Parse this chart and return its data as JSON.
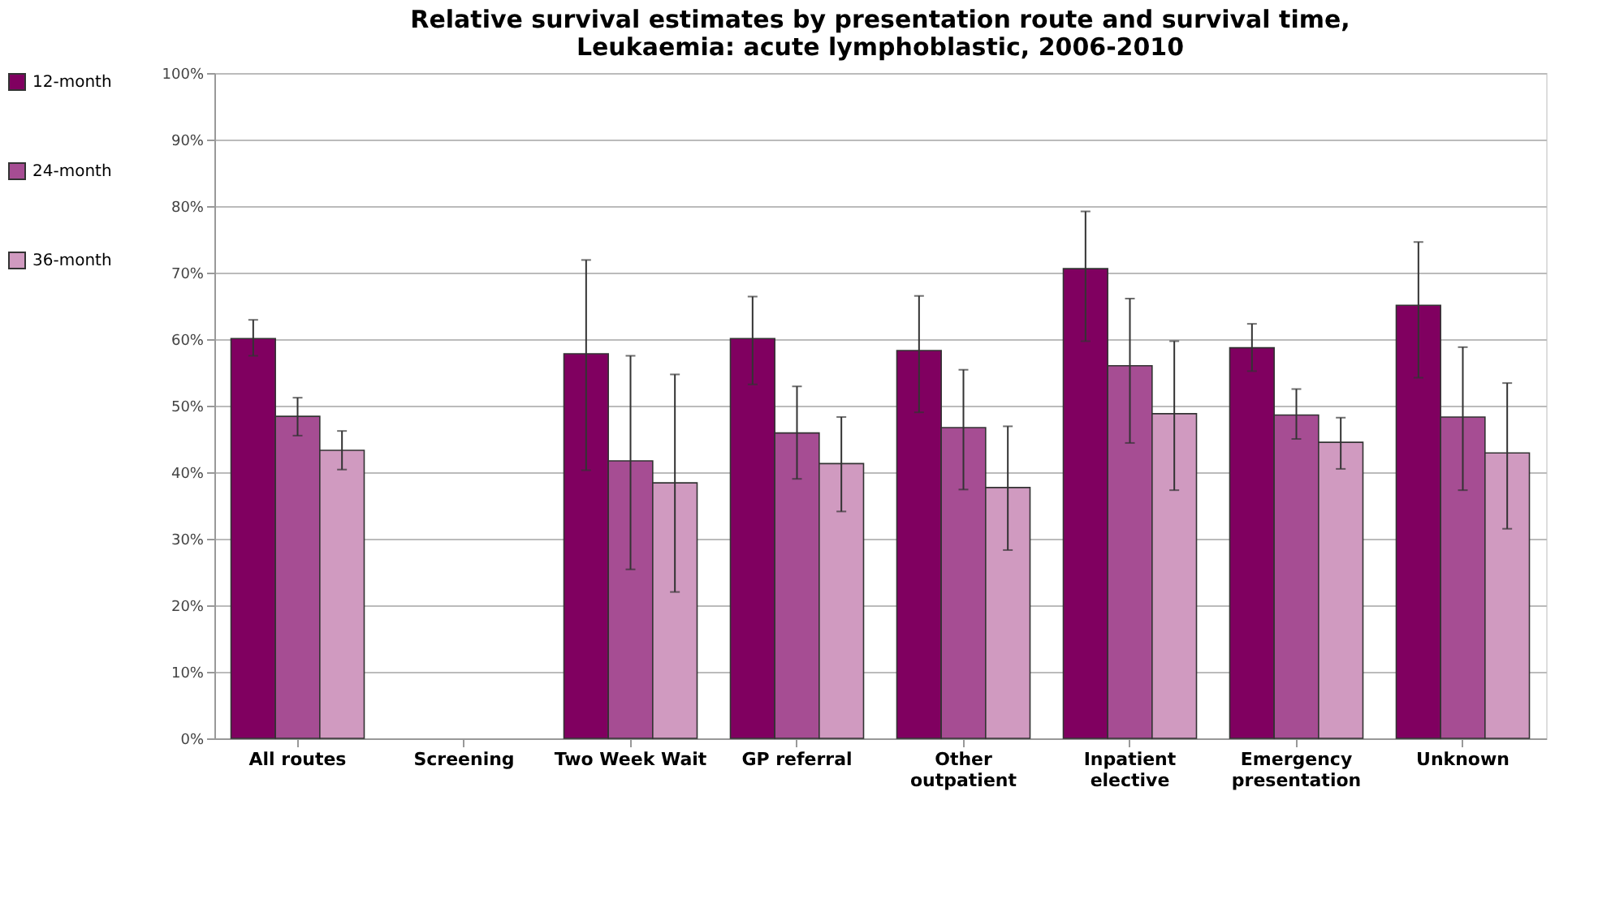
{
  "chart_data": {
    "type": "bar",
    "title": "Relative survival estimates by presentation route and survival time, Leukaemia: acute lymphoblastic, 2006-2010",
    "categories": [
      "All routes",
      "Screening",
      "Two Week Wait",
      "GP referral",
      "Other outpatient",
      "Inpatient elective",
      "Emergency presentation",
      "Unknown"
    ],
    "series": [
      {
        "name": "12-month",
        "color": "#800060",
        "values": [
          60.1,
          null,
          57.8,
          60.1,
          58.3,
          70.6,
          58.7,
          65.1
        ],
        "errors": [
          [
            57.5,
            62.9
          ],
          null,
          [
            40.3,
            71.9
          ],
          [
            53.2,
            66.4
          ],
          [
            49.0,
            66.5
          ],
          [
            59.7,
            79.2
          ],
          [
            55.2,
            62.3
          ],
          [
            54.2,
            74.6
          ]
        ]
      },
      {
        "name": "24-month",
        "color": "#a64d93",
        "values": [
          48.4,
          null,
          41.7,
          45.9,
          46.7,
          56.0,
          48.6,
          48.3
        ],
        "errors": [
          [
            45.5,
            51.2
          ],
          null,
          [
            25.4,
            57.5
          ],
          [
            39.0,
            52.9
          ],
          [
            37.4,
            55.4
          ],
          [
            44.4,
            66.1
          ],
          [
            45.0,
            52.5
          ],
          [
            37.3,
            58.8
          ]
        ]
      },
      {
        "name": "36-month",
        "color": "#d09ac0",
        "values": [
          43.3,
          null,
          38.4,
          41.3,
          37.7,
          48.8,
          44.5,
          42.9
        ],
        "errors": [
          [
            40.4,
            46.2
          ],
          null,
          [
            22.0,
            54.7
          ],
          [
            34.1,
            48.3
          ],
          [
            28.3,
            46.9
          ],
          [
            37.3,
            59.7
          ],
          [
            40.5,
            48.2
          ],
          [
            31.5,
            53.4
          ]
        ]
      }
    ],
    "ylim": [
      0,
      100
    ],
    "yticks": [
      {
        "value": 0,
        "label": "0%"
      },
      {
        "value": 10,
        "label": "10%"
      },
      {
        "value": 20,
        "label": "20%"
      },
      {
        "value": 30,
        "label": "30%"
      },
      {
        "value": 40,
        "label": "40%"
      },
      {
        "value": 50,
        "label": "50%"
      },
      {
        "value": 60,
        "label": "60%"
      },
      {
        "value": 70,
        "label": "70%"
      },
      {
        "value": 80,
        "label": "80%"
      },
      {
        "value": 90,
        "label": "90%"
      },
      {
        "value": 100,
        "label": "100%"
      }
    ],
    "grid": "y",
    "legend": "left"
  }
}
